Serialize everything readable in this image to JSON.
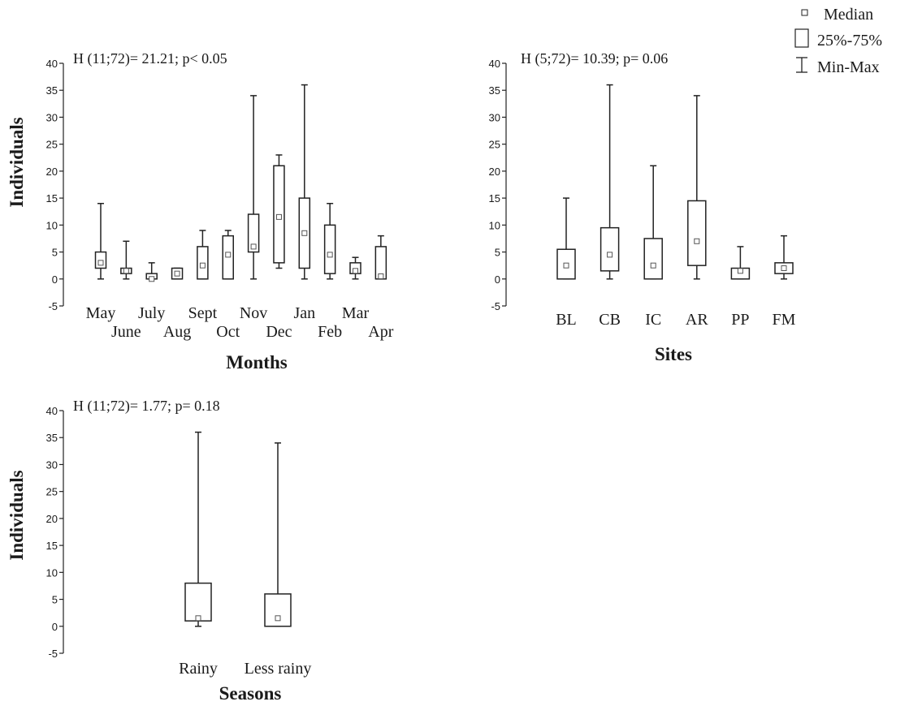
{
  "legend": {
    "items": [
      {
        "label": "Median",
        "icon": "small-square-icon"
      },
      {
        "label": "25%-75%",
        "icon": "box-icon"
      },
      {
        "label": "Min-Max",
        "icon": "whisker-icon"
      }
    ]
  },
  "chart_data": [
    {
      "type": "box",
      "annotation": "H (11;72)= 21.21; p< 0.05",
      "xlabel": "Months",
      "ylabel": "Individuals",
      "ylim": [
        -5,
        40
      ],
      "yticks": [
        -5,
        0,
        5,
        10,
        15,
        20,
        25,
        30,
        35,
        40
      ],
      "categories": [
        "May",
        "June",
        "July",
        "Aug",
        "Sept",
        "Oct",
        "Nov",
        "Dec",
        "Jan",
        "Feb",
        "Mar",
        "Apr"
      ],
      "series": [
        {
          "median": [
            3,
            1.5,
            0,
            1,
            2.5,
            4.5,
            6,
            11.5,
            8.5,
            4.5,
            1.5,
            0.5
          ],
          "q1": [
            2,
            1,
            0,
            0,
            0,
            0,
            5,
            3,
            2,
            1,
            1,
            0
          ],
          "q3": [
            5,
            2,
            1,
            2,
            6,
            8,
            12,
            21,
            15,
            10,
            3,
            6
          ],
          "min": [
            0,
            0,
            0,
            0,
            0,
            0,
            0,
            2,
            0,
            0,
            0,
            0
          ],
          "max": [
            14,
            7,
            3,
            2,
            9,
            9,
            34,
            23,
            36,
            14,
            4,
            8
          ]
        }
      ]
    },
    {
      "type": "box",
      "annotation": "H (5;72)= 10.39; p= 0.06",
      "xlabel": "Sites",
      "ylabel": "",
      "ylim": [
        -5,
        40
      ],
      "yticks": [
        -5,
        0,
        5,
        10,
        15,
        20,
        25,
        30,
        35,
        40
      ],
      "categories": [
        "BL",
        "CB",
        "IC",
        "AR",
        "PP",
        "FM"
      ],
      "series": [
        {
          "median": [
            2.5,
            4.5,
            2.5,
            7,
            1.5,
            2
          ],
          "q1": [
            0,
            1.5,
            0,
            2.5,
            0,
            1
          ],
          "q3": [
            5.5,
            9.5,
            7.5,
            14.5,
            2,
            3
          ],
          "min": [
            0,
            0,
            0,
            0,
            0,
            0
          ],
          "max": [
            15,
            36,
            21,
            34,
            6,
            8
          ]
        }
      ]
    },
    {
      "type": "box",
      "annotation": "H (11;72)= 1.77; p= 0.18",
      "xlabel": "Seasons",
      "ylabel": "Individuals",
      "ylim": [
        -5,
        40
      ],
      "yticks": [
        -5,
        0,
        5,
        10,
        15,
        20,
        25,
        30,
        35,
        40
      ],
      "categories": [
        "Rainy",
        "Less rainy"
      ],
      "series": [
        {
          "median": [
            1.5,
            1.5
          ],
          "q1": [
            1,
            0
          ],
          "q3": [
            8,
            6
          ],
          "min": [
            0,
            0
          ],
          "max": [
            36,
            34
          ]
        }
      ]
    }
  ]
}
